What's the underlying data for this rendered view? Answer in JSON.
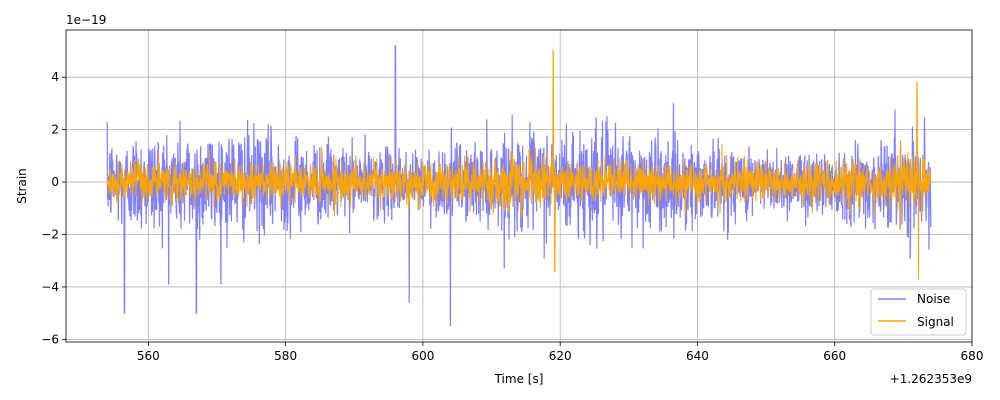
{
  "chart_data": {
    "type": "line",
    "title": "",
    "xlabel": "Time [s]",
    "ylabel": "Strain",
    "x_offset_label": "+1.262353e9",
    "y_scale_label": "1e−19",
    "xlim": [
      548,
      680
    ],
    "ylim": [
      -6.1,
      5.8
    ],
    "x_ticks": [
      560,
      580,
      600,
      620,
      640,
      660,
      680
    ],
    "y_ticks": [
      -6,
      -4,
      -2,
      0,
      2,
      4
    ],
    "x_tick_labels": [
      "560",
      "580",
      "600",
      "620",
      "640",
      "660",
      "680"
    ],
    "y_tick_labels": [
      "−6",
      "−4",
      "−2",
      "0",
      "2",
      "4"
    ],
    "grid": true,
    "legend_position": "lower-right",
    "x_range": [
      554,
      674
    ],
    "series": [
      {
        "name": "Noise",
        "color": "#8080ff",
        "typical_amplitude": 1.5,
        "peaks": [
          {
            "x": 556.5,
            "y": -5.0
          },
          {
            "x": 567,
            "y": -5.0
          },
          {
            "x": 596,
            "y": 5.2
          },
          {
            "x": 604,
            "y": -5.5
          },
          {
            "x": 598,
            "y": -4.6
          }
        ]
      },
      {
        "name": "Signal",
        "color": "#ffa500",
        "typical_amplitude": 0.7,
        "peaks": [
          {
            "x": 619,
            "y": 5.0
          },
          {
            "x": 619.2,
            "y": -3.4
          },
          {
            "x": 672,
            "y": 3.8
          },
          {
            "x": 672.2,
            "y": -3.7
          }
        ]
      }
    ]
  }
}
